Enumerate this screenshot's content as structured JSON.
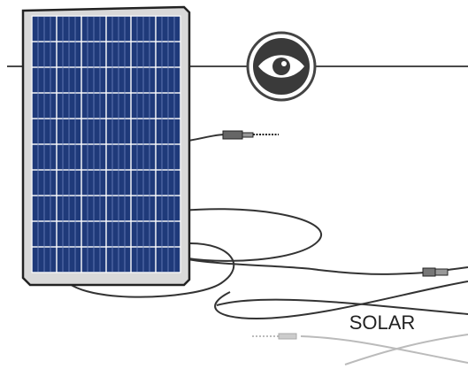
{
  "label": "SOLAR"
}
